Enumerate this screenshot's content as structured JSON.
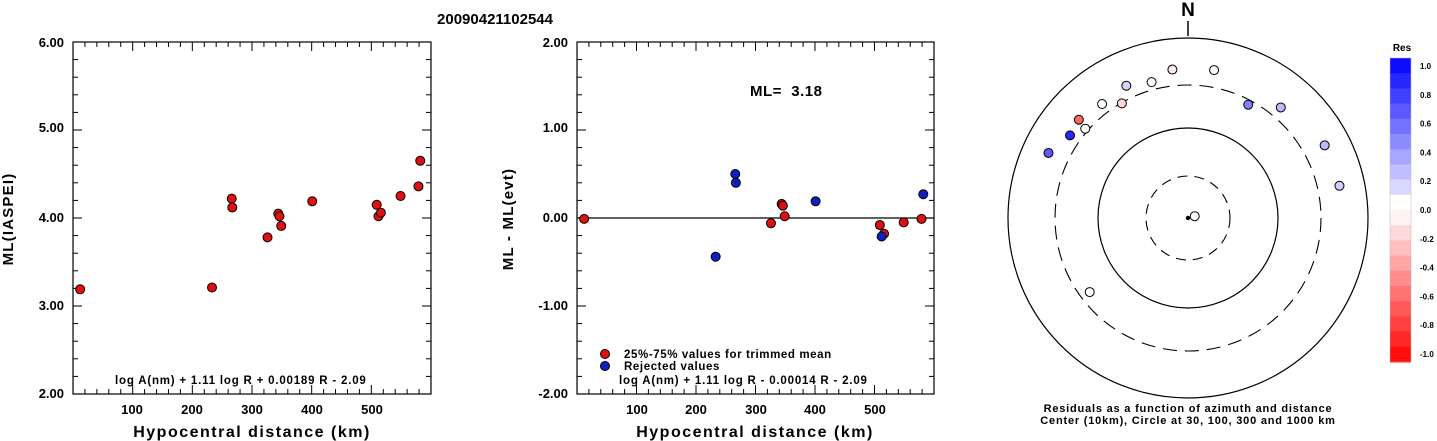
{
  "title": "20090421102544",
  "colors": {
    "trimmed": "#e01010",
    "rejected": "#1020c0",
    "axis": "#000000"
  },
  "chart_data": [
    {
      "type": "scatter",
      "xlabel": "Hypocentral distance (km)",
      "ylabel": "ML(IASPEI)",
      "xlim": [
        0,
        600
      ],
      "ylim": [
        2.0,
        6.0
      ],
      "xticks": [
        "100",
        "200",
        "300",
        "400",
        "500"
      ],
      "yticks": [
        "2.00",
        "3.00",
        "4.00",
        "5.00",
        "6.00"
      ],
      "formula": "log A(nm) + 1.11 log R + 0.00189 R - 2.09",
      "series": [
        {
          "color": "trimmed",
          "points": [
            [
              12,
              3.19
            ],
            [
              233,
              3.21
            ],
            [
              266,
              4.22
            ],
            [
              267,
              4.12
            ],
            [
              326,
              3.78
            ],
            [
              344,
              4.05
            ],
            [
              346,
              4.02
            ],
            [
              349,
              3.91
            ],
            [
              401,
              4.19
            ],
            [
              509,
              4.15
            ],
            [
              512,
              4.02
            ],
            [
              516,
              4.06
            ],
            [
              549,
              4.25
            ],
            [
              579,
              4.36
            ],
            [
              582,
              4.65
            ]
          ]
        }
      ]
    },
    {
      "type": "scatter",
      "xlabel": "Hypocentral distance (km)",
      "ylabel": "ML - ML(evt)",
      "xlim": [
        0,
        600
      ],
      "ylim": [
        -2.0,
        2.0
      ],
      "xticks": [
        "100",
        "200",
        "300",
        "400",
        "500"
      ],
      "yticks": [
        "-2.00",
        "-1.00",
        "0.00",
        "1.00",
        "2.00"
      ],
      "ml_label": "ML=  3.18",
      "formula": "log A(nm) + 1.11 log R - 0.00014 R - 2.09",
      "legend": [
        {
          "color": "trimmed",
          "label": "25%-75% values for trimmed mean"
        },
        {
          "color": "rejected",
          "label": "Rejected values"
        }
      ],
      "series": [
        {
          "color": "trimmed",
          "points": [
            [
              12,
              -0.01
            ],
            [
              326,
              -0.06
            ],
            [
              344,
              0.16
            ],
            [
              346,
              0.14
            ],
            [
              349,
              0.02
            ],
            [
              509,
              -0.08
            ],
            [
              516,
              -0.18
            ],
            [
              549,
              -0.05
            ],
            [
              579,
              -0.01
            ]
          ]
        },
        {
          "color": "rejected",
          "points": [
            [
              233,
              -0.44
            ],
            [
              266,
              0.5
            ],
            [
              267,
              0.4
            ],
            [
              401,
              0.19
            ],
            [
              512,
              -0.21
            ],
            [
              582,
              0.27
            ]
          ]
        }
      ]
    },
    {
      "type": "polar-scatter",
      "north_label": "N",
      "caption_line1": "Residuals as a function of azimuth and distance",
      "caption_line2": "Center (10km), Circle at 30, 100, 300 and 1000 km",
      "colorbar": {
        "title": "Res",
        "ticks": [
          "1.0",
          "0.8",
          "0.6",
          "0.4",
          "0.2",
          "0.0",
          "-0.2",
          "-0.4",
          "-0.6",
          "-0.8",
          "-1.0"
        ]
      },
      "stations": [
        {
          "azimuth": 75,
          "distance": 12,
          "res": 0.0
        },
        {
          "azimuth": 233,
          "distance": 233,
          "res": 0.0
        },
        {
          "azimuth": 295,
          "distance": 513,
          "res": 0.65
        },
        {
          "azimuth": 305,
          "distance": 398,
          "res": 0.85
        },
        {
          "azimuth": 311,
          "distance": 325,
          "res": 0.0
        },
        {
          "azimuth": 312,
          "distance": 428,
          "res": -0.6
        },
        {
          "azimuth": 323,
          "distance": 385,
          "res": 0.02
        },
        {
          "azimuth": 330,
          "distance": 295,
          "res": -0.16
        },
        {
          "azimuth": 335,
          "distance": 418,
          "res": 0.17
        },
        {
          "azimuth": 345,
          "distance": 365,
          "res": 0.0
        },
        {
          "azimuth": 354,
          "distance": 455,
          "res": -0.08
        },
        {
          "azimuth": 10,
          "distance": 466,
          "res": -0.01
        },
        {
          "azimuth": 28,
          "distance": 266,
          "res": 0.5
        },
        {
          "azimuth": 40,
          "distance": 401,
          "res": 0.27
        },
        {
          "azimuth": 62,
          "distance": 524,
          "res": 0.27
        },
        {
          "azimuth": 78,
          "distance": 525,
          "res": 0.19
        }
      ]
    }
  ]
}
